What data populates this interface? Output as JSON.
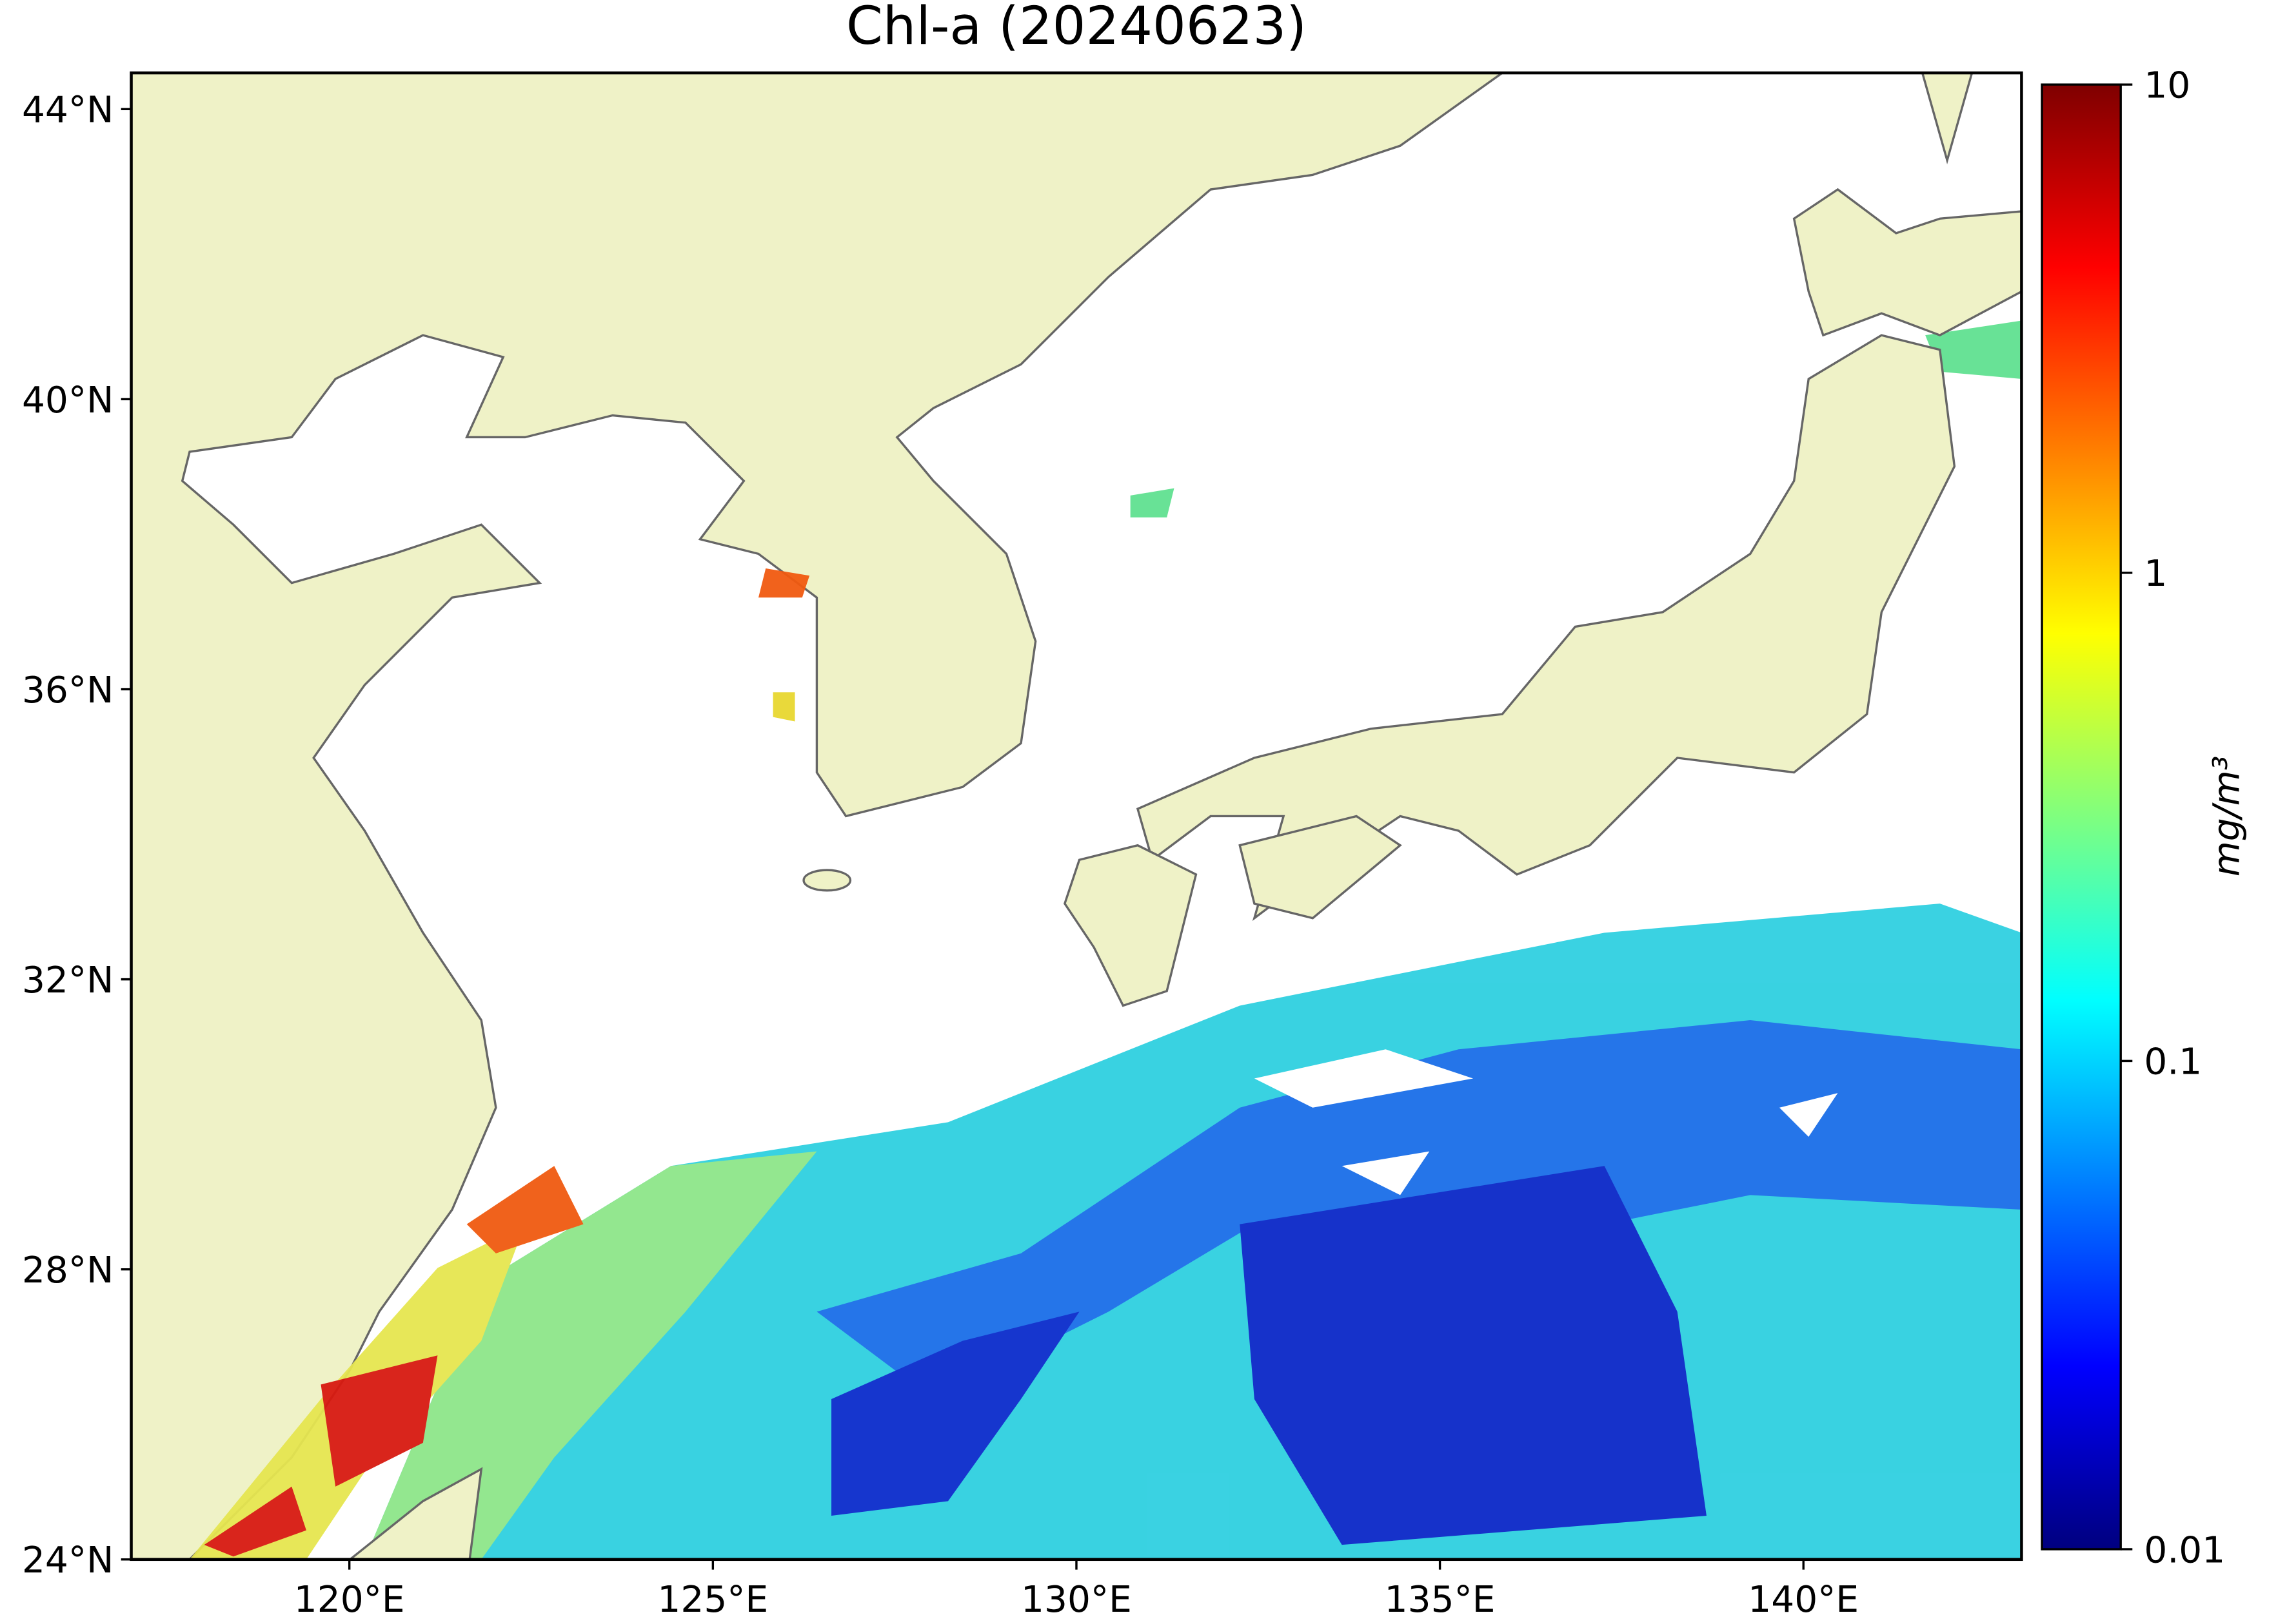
{
  "chart_data": {
    "type": "map",
    "title": "Chl-a (20240623)",
    "xlim": [
      117,
      143
    ],
    "ylim": [
      24,
      44.5
    ],
    "xticks": [
      {
        "value": 120,
        "label": "120°E"
      },
      {
        "value": 125,
        "label": "125°E"
      },
      {
        "value": 130,
        "label": "130°E"
      },
      {
        "value": 135,
        "label": "135°E"
      },
      {
        "value": 140,
        "label": "140°E"
      }
    ],
    "yticks": [
      {
        "value": 24,
        "label": "24°N"
      },
      {
        "value": 28,
        "label": "28°N"
      },
      {
        "value": 32,
        "label": "32°N"
      },
      {
        "value": 36,
        "label": "36°N"
      },
      {
        "value": 40,
        "label": "40°N"
      },
      {
        "value": 44,
        "label": "44°N"
      }
    ],
    "colorbar": {
      "label": "mg/m³",
      "scale": "log",
      "colormap": "jet",
      "lim": [
        0.01,
        10
      ],
      "ticks": [
        0.01,
        0.1,
        1,
        10
      ]
    },
    "land_color": "#eff2c7"
  }
}
